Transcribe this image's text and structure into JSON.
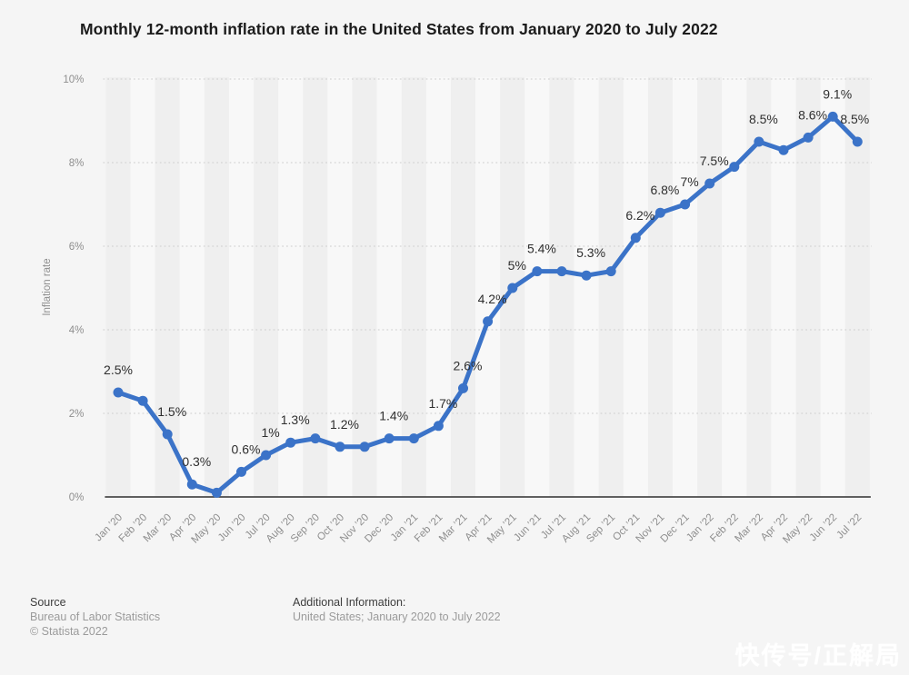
{
  "page": {
    "background_color": "#f5f5f5",
    "watermark_text": "快传号/正解局"
  },
  "header": {
    "title": "Monthly 12-month inflation rate in the United States from January 2020 to July 2022"
  },
  "chart_data": {
    "type": "line",
    "title": "Monthly 12-month inflation rate in the United States from January 2020 to July 2022",
    "xlabel": "",
    "ylabel": "Inflation rate",
    "ylim": [
      0,
      10
    ],
    "ytick_labels": [
      "0%",
      "2%",
      "4%",
      "6%",
      "8%",
      "10%"
    ],
    "grid": "horizontal-dotted",
    "legend": "none",
    "line_color": "#3b73c8",
    "grid_color": "#cdcdcd",
    "axis_color": "#2e2e2e",
    "tick_text_color": "#8e8e8e",
    "label_text_color": "#2f2f2f",
    "band_colors": [
      "#efefef",
      "#f8f8f8"
    ],
    "categories": [
      "Jan ’20",
      "Feb ’20",
      "Mar ’20",
      "Apr ’20",
      "May ’20",
      "Jun ’20",
      "Jul ’20",
      "Aug ’20",
      "Sep ’20",
      "Oct ’20",
      "Nov ’20",
      "Dec ’20",
      "Jan ’21",
      "Feb ’21",
      "Mar ’21",
      "Apr ’21",
      "May ’21",
      "Jun ’21",
      "Jul ’21",
      "Aug ’21",
      "Sep ’21",
      "Oct ’21",
      "Nov ’21",
      "Dec ’21",
      "Jan ’22",
      "Feb ’22",
      "Mar ’22",
      "Apr ’22",
      "May ’22",
      "Jun ’22",
      "Jul ’22"
    ],
    "values": [
      2.5,
      2.3,
      1.5,
      0.3,
      0.1,
      0.6,
      1,
      1.3,
      1.4,
      1.2,
      1.2,
      1.4,
      1.4,
      1.7,
      2.6,
      4.2,
      5,
      5.4,
      5.4,
      5.3,
      5.4,
      6.2,
      6.8,
      7,
      7.5,
      7.9,
      8.5,
      8.3,
      8.6,
      9.1,
      8.5
    ],
    "point_labels": [
      "2.5%",
      "",
      "1.5%",
      "0.3%",
      "",
      "0.6%",
      "1%",
      "1.3%",
      "",
      "1.2%",
      "",
      "1.4%",
      "",
      "1.7%",
      "2.6%",
      "4.2%",
      "5%",
      "5.4%",
      "",
      "5.3%",
      "",
      "6.2%",
      "6.8%",
      "7%",
      "7.5%",
      "",
      "8.5%",
      "",
      "8.6%",
      "9.1%",
      "8.5%"
    ]
  },
  "footer": {
    "source_label": "Source",
    "source_lines": [
      "Bureau of Labor Statistics",
      "© Statista 2022"
    ],
    "additional_label": "Additional Information:",
    "additional_text": "United States; January 2020 to July 2022"
  }
}
